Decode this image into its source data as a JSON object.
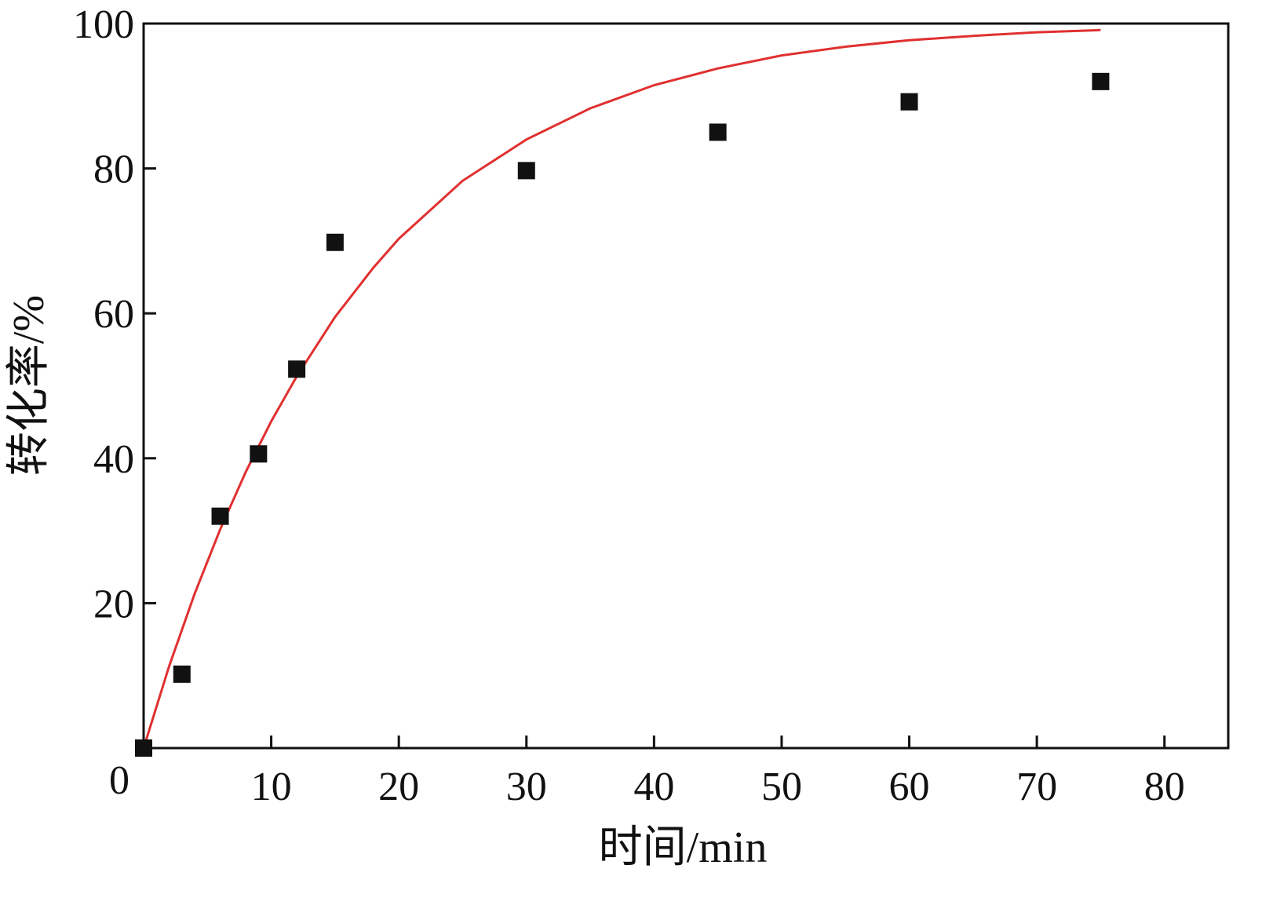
{
  "chart_data": {
    "type": "scatter",
    "title": "",
    "xlabel": "时间/min",
    "ylabel": "转化率/%",
    "xlim": [
      0,
      85
    ],
    "ylim": [
      0,
      100
    ],
    "x_ticks": [
      10,
      20,
      30,
      40,
      50,
      60,
      70,
      80
    ],
    "y_ticks": [
      20,
      40,
      60,
      80,
      100
    ],
    "origin_label": "0",
    "grid": false,
    "series": [
      {
        "type": "scatter",
        "marker": "square",
        "color": "#111111",
        "points": [
          {
            "x": 0,
            "y": 0
          },
          {
            "x": 3,
            "y": 10.2
          },
          {
            "x": 6,
            "y": 32
          },
          {
            "x": 9,
            "y": 40.6
          },
          {
            "x": 12,
            "y": 52.3
          },
          {
            "x": 15,
            "y": 69.8
          },
          {
            "x": 30,
            "y": 79.7
          },
          {
            "x": 45,
            "y": 85
          },
          {
            "x": 60,
            "y": 89.2
          },
          {
            "x": 75,
            "y": 92
          }
        ]
      },
      {
        "type": "line",
        "color": "#e03030",
        "points": [
          {
            "x": 0,
            "y": 0
          },
          {
            "x": 2,
            "y": 11.3
          },
          {
            "x": 4,
            "y": 21.3
          },
          {
            "x": 6,
            "y": 30.2
          },
          {
            "x": 8,
            "y": 38.1
          },
          {
            "x": 10,
            "y": 45.1
          },
          {
            "x": 12,
            "y": 51.3
          },
          {
            "x": 15,
            "y": 59.5
          },
          {
            "x": 18,
            "y": 66.3
          },
          {
            "x": 20,
            "y": 70.3
          },
          {
            "x": 25,
            "y": 78.3
          },
          {
            "x": 30,
            "y": 84.0
          },
          {
            "x": 35,
            "y": 88.3
          },
          {
            "x": 40,
            "y": 91.5
          },
          {
            "x": 45,
            "y": 93.8
          },
          {
            "x": 50,
            "y": 95.6
          },
          {
            "x": 55,
            "y": 96.8
          },
          {
            "x": 60,
            "y": 97.7
          },
          {
            "x": 65,
            "y": 98.3
          },
          {
            "x": 70,
            "y": 98.8
          },
          {
            "x": 75,
            "y": 99.1
          }
        ]
      }
    ]
  }
}
